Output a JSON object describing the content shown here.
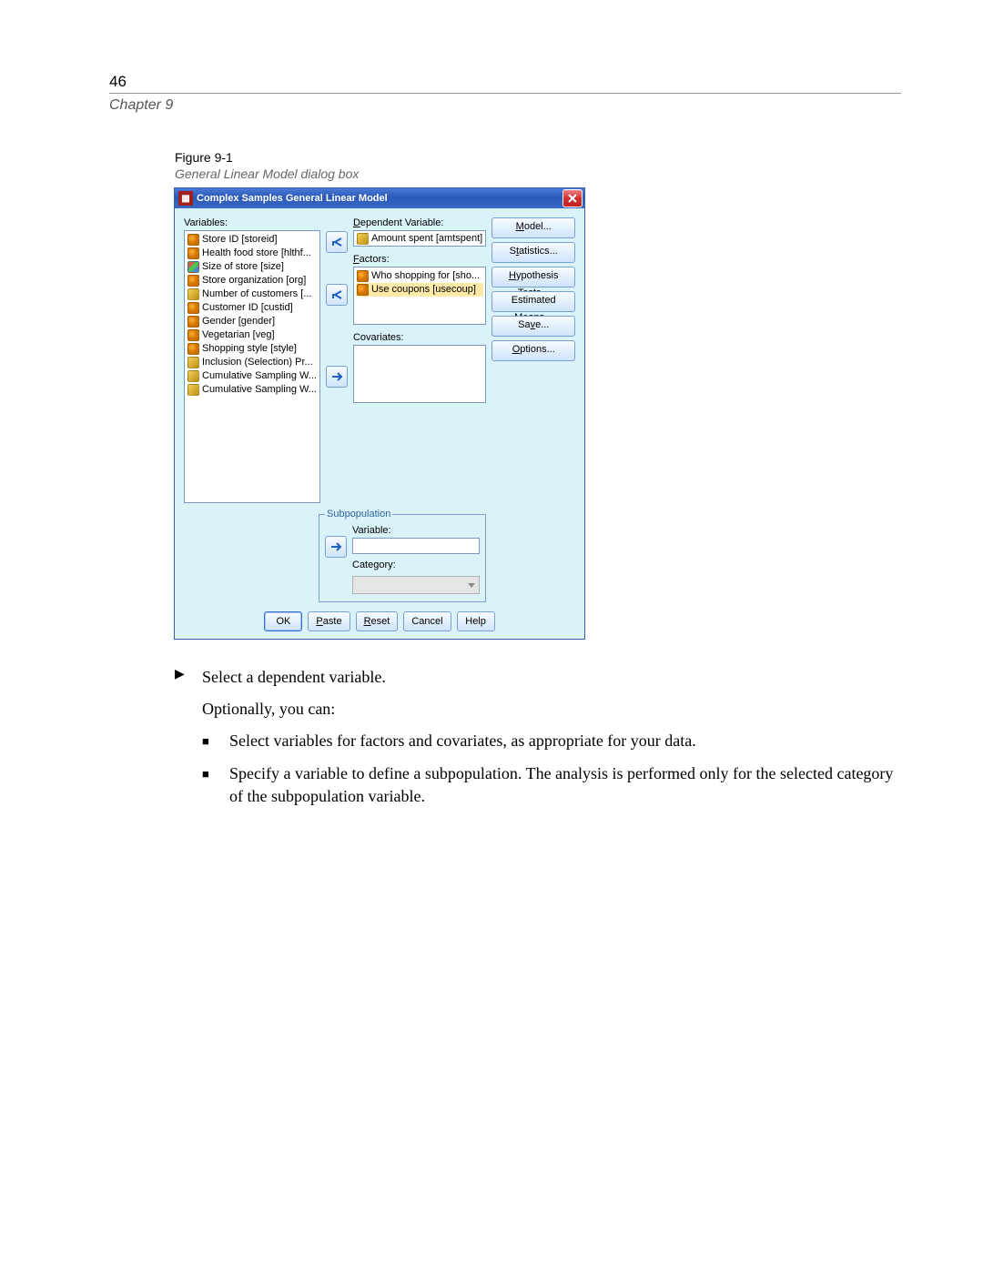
{
  "page_number": "46",
  "chapter": "Chapter 9",
  "figure_num": "Figure 9-1",
  "figure_title": "General Linear Model dialog box",
  "dialog": {
    "title": "Complex Samples General Linear Model",
    "labels": {
      "variables": "Variables:",
      "dependent": "Dependent Variable:",
      "factors": "Factors:",
      "covariates": "Covariates:",
      "sub_legend": "Subpopulation",
      "sub_variable": "Variable:",
      "sub_category": "Category:"
    },
    "variables_list": [
      {
        "icon": "nom",
        "text": "Store ID [storeid]"
      },
      {
        "icon": "nom",
        "text": "Health food store [hlthf..."
      },
      {
        "icon": "ord",
        "text": "Size of store [size]"
      },
      {
        "icon": "nom",
        "text": "Store organization [org]"
      },
      {
        "icon": "scl",
        "text": "Number of customers [..."
      },
      {
        "icon": "nom",
        "text": "Customer ID [custid]"
      },
      {
        "icon": "nom",
        "text": "Gender [gender]"
      },
      {
        "icon": "nom",
        "text": "Vegetarian [veg]"
      },
      {
        "icon": "nom",
        "text": "Shopping style [style]"
      },
      {
        "icon": "scl",
        "text": "Inclusion (Selection) Pr..."
      },
      {
        "icon": "scl",
        "text": "Cumulative Sampling W..."
      },
      {
        "icon": "scl",
        "text": "Cumulative Sampling W..."
      }
    ],
    "dependent_value": {
      "icon": "scl",
      "text": "Amount spent [amtspent]"
    },
    "factors_values": [
      {
        "icon": "nom",
        "text": "Who shopping for [sho...",
        "sel": false
      },
      {
        "icon": "nom",
        "text": "Use coupons [usecoup]",
        "sel": true
      }
    ],
    "side_buttons": {
      "model": "Model...",
      "statistics": "Statistics...",
      "hyp": "Hypothesis Tests...",
      "est": "Estimated Means...",
      "save": "Save...",
      "options": "Options..."
    },
    "bottom": {
      "ok": "OK",
      "paste": "Paste",
      "reset": "Reset",
      "cancel": "Cancel",
      "help": "Help"
    }
  },
  "body": {
    "step1": "Select a dependent variable.",
    "intro": "Optionally, you can:",
    "bullet1": "Select variables for factors and covariates, as appropriate for your data.",
    "bullet2": "Specify a variable to define a subpopulation. The analysis is performed only for the selected category of the subpopulation variable."
  }
}
